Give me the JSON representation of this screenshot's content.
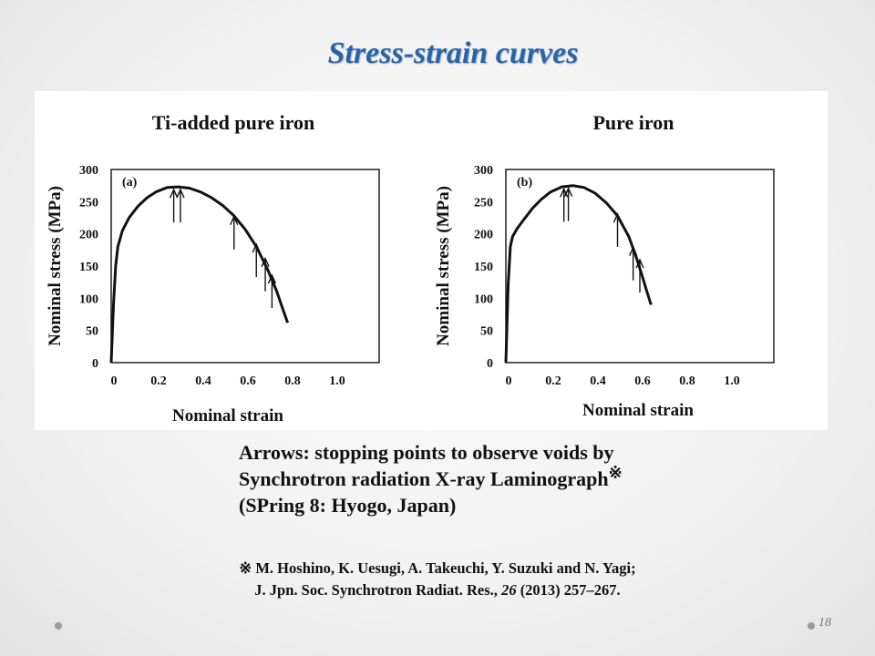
{
  "slide": {
    "title": "Stress-strain curves",
    "caption_lines": [
      "Arrows: stopping points to observe voids by",
      "Synchrotron radiation X-ray Laminograph",
      "(SPring 8: Hyogo, Japan)"
    ],
    "caption_mark": "※",
    "reference": {
      "mark": "※",
      "authors": "M. Hoshino, K. Uesugi, A. Takeuchi, Y. Suzuki and N. Yagi;",
      "journal_prefix": "J. Jpn. Soc. Synchrotron Radiat. Res.,",
      "volume": "26",
      "details": "(2013) 257–267."
    },
    "page_number": "18"
  },
  "chart_data": [
    {
      "type": "line",
      "title": "Ti-added pure iron",
      "panel_label": "(a)",
      "xlabel": "Nominal strain",
      "ylabel": "Nominal stress (MPa)",
      "xlim": [
        0,
        1.0
      ],
      "ylim": [
        0,
        300
      ],
      "x_ticks": [
        "0",
        "0.2",
        "0.4",
        "0.6",
        "0.8",
        "1.0"
      ],
      "y_ticks": [
        "0",
        "50",
        "100",
        "150",
        "200",
        "250",
        "300"
      ],
      "series": [
        {
          "x": [
            0,
            0.01,
            0.02,
            0.03,
            0.05,
            0.08,
            0.12,
            0.16,
            0.2,
            0.25,
            0.3,
            0.35,
            0.4,
            0.45,
            0.5,
            0.55,
            0.6,
            0.65,
            0.7,
            0.74,
            0.77,
            0.79
          ],
          "y": [
            0,
            90,
            150,
            180,
            205,
            225,
            243,
            256,
            265,
            272,
            273,
            271,
            265,
            256,
            244,
            228,
            207,
            180,
            145,
            112,
            82,
            62
          ]
        }
      ],
      "arrows": [
        {
          "x": 0.28,
          "y": 273
        },
        {
          "x": 0.31,
          "y": 273
        },
        {
          "x": 0.55,
          "y": 231
        },
        {
          "x": 0.65,
          "y": 188
        },
        {
          "x": 0.69,
          "y": 166
        },
        {
          "x": 0.72,
          "y": 140
        }
      ]
    },
    {
      "type": "line",
      "title": "Pure iron",
      "panel_label": "(b)",
      "xlabel": "Nominal strain",
      "ylabel": "Nominal stress (MPa)",
      "xlim": [
        0,
        1.0
      ],
      "ylim": [
        0,
        300
      ],
      "x_ticks": [
        "0",
        "0.2",
        "0.4",
        "0.6",
        "0.8",
        "1.0"
      ],
      "y_ticks": [
        "0",
        "50",
        "100",
        "150",
        "200",
        "250",
        "300"
      ],
      "series": [
        {
          "x": [
            0,
            0.01,
            0.02,
            0.03,
            0.05,
            0.08,
            0.12,
            0.16,
            0.2,
            0.25,
            0.3,
            0.35,
            0.4,
            0.45,
            0.5,
            0.55,
            0.58,
            0.61,
            0.63,
            0.65
          ],
          "y": [
            0,
            120,
            180,
            196,
            208,
            222,
            240,
            254,
            265,
            273,
            275,
            272,
            263,
            248,
            228,
            196,
            168,
            135,
            112,
            90
          ]
        }
      ],
      "arrows": [
        {
          "x": 0.26,
          "y": 274
        },
        {
          "x": 0.28,
          "y": 275
        },
        {
          "x": 0.5,
          "y": 235
        },
        {
          "x": 0.57,
          "y": 183
        },
        {
          "x": 0.6,
          "y": 164
        }
      ]
    }
  ]
}
